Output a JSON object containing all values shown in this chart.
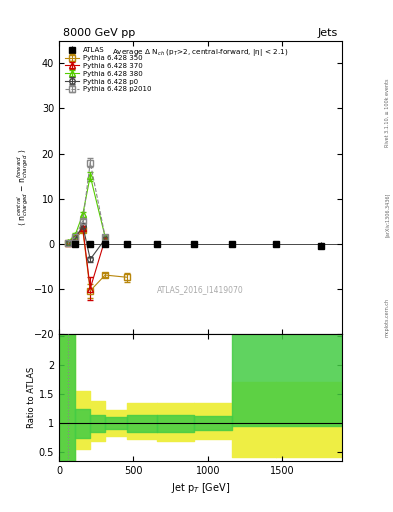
{
  "title_top": "8000 GeV pp",
  "title_right": "Jets",
  "subtitle": "Average Δ N$_{ch}$ (p$_T$>2, central-forward, |η| < 2.1)",
  "ylabel_main": "⟨ n$^{central}_{charged}$ − n$^{forward}_{charged}$ ⟩",
  "ylabel_ratio": "Ratio to ATLAS",
  "xlabel": "Jet p$_T$ [GeV]",
  "watermark": "ATLAS_2016_I1419070",
  "rivet_label": "Rivet 3.1.10, ≥ 100k events",
  "arxiv_label": "[arXiv:1306.3436]",
  "mcplots_label": "mcplots.cern.ch",
  "atlas_x": [
    110,
    210,
    310,
    460,
    660,
    910,
    1160,
    1460,
    1760
  ],
  "atlas_y": [
    0.0,
    0.0,
    0.0,
    0.0,
    0.0,
    0.0,
    0.0,
    0.0,
    -0.5
  ],
  "atlas_yerr": [
    0.3,
    0.2,
    0.2,
    0.2,
    0.2,
    0.2,
    0.2,
    0.4,
    0.8
  ],
  "p350_x": [
    60,
    110,
    160,
    210,
    310,
    460
  ],
  "p350_y": [
    0.2,
    1.0,
    3.0,
    -10.5,
    -7.0,
    -7.5
  ],
  "p350_yerr": [
    0.1,
    0.3,
    0.5,
    1.5,
    0.5,
    1.0
  ],
  "p370_x": [
    60,
    110,
    160,
    210,
    310
  ],
  "p370_y": [
    0.2,
    1.5,
    3.5,
    -10.0,
    1.0
  ],
  "p370_yerr": [
    0.1,
    0.3,
    0.5,
    2.5,
    0.5
  ],
  "p380_x": [
    60,
    110,
    160,
    210,
    310
  ],
  "p380_y": [
    0.3,
    2.0,
    6.5,
    15.0,
    1.5
  ],
  "p380_yerr": [
    0.1,
    0.3,
    0.5,
    1.0,
    0.5
  ],
  "p0_x": [
    60,
    110,
    160,
    210,
    310
  ],
  "p0_y": [
    0.2,
    1.0,
    4.0,
    -3.5,
    1.0
  ],
  "p0_yerr": [
    0.1,
    0.3,
    0.5,
    0.5,
    0.5
  ],
  "p2010_x": [
    60,
    110,
    160,
    210,
    310
  ],
  "p2010_y": [
    0.2,
    1.5,
    5.0,
    18.0,
    1.5
  ],
  "p2010_yerr": [
    0.1,
    0.3,
    0.5,
    1.0,
    0.5
  ],
  "ylim_main": [
    -20,
    45
  ],
  "ylim_ratio": [
    0.35,
    2.55
  ],
  "xlim": [
    0,
    1900
  ],
  "ratio_yellow_edges": [
    0,
    110,
    210,
    310,
    460,
    660,
    910,
    1160,
    1460,
    1900
  ],
  "ratio_yellow_lo": [
    0.35,
    0.55,
    0.7,
    0.78,
    0.72,
    0.7,
    0.72,
    0.42,
    0.42,
    0.42
  ],
  "ratio_yellow_hi": [
    2.55,
    1.55,
    1.38,
    1.22,
    1.35,
    1.35,
    1.35,
    1.72,
    1.72,
    1.72
  ],
  "ratio_green_edges": [
    0,
    110,
    210,
    310,
    460,
    660,
    910,
    1160,
    1900
  ],
  "ratio_green_lo": [
    0.35,
    0.75,
    0.85,
    0.9,
    0.85,
    0.85,
    0.88,
    0.95,
    0.95
  ],
  "ratio_green_hi": [
    2.55,
    1.25,
    1.15,
    1.1,
    1.15,
    1.15,
    1.12,
    2.55,
    2.55
  ],
  "color_atlas": "#000000",
  "color_p350": "#b8860b",
  "color_p370": "#cc0000",
  "color_p380": "#55cc00",
  "color_p0": "#444444",
  "color_p2010": "#888888",
  "color_green_band": "#44cc44",
  "color_yellow_band": "#eeee44"
}
